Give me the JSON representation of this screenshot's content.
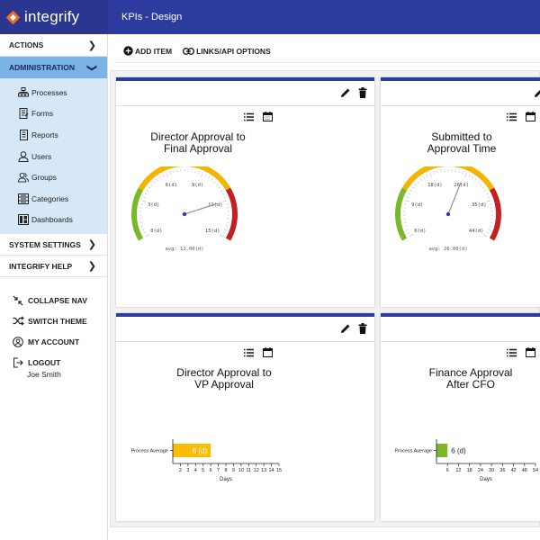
{
  "header": {
    "logo_text": "integrify",
    "page_title": "KPIs - Design"
  },
  "sidebar": {
    "actions": "ACTIONS",
    "administration": "ADMINISTRATION",
    "admin_items": [
      {
        "label": "Processes",
        "icon": "processes-icon"
      },
      {
        "label": "Forms",
        "icon": "forms-icon"
      },
      {
        "label": "Reports",
        "icon": "reports-icon"
      },
      {
        "label": "Users",
        "icon": "users-icon"
      },
      {
        "label": "Groups",
        "icon": "groups-icon"
      },
      {
        "label": "Categories",
        "icon": "categories-icon"
      },
      {
        "label": "Dashboards",
        "icon": "dashboards-icon"
      }
    ],
    "system_settings": "SYSTEM SETTINGS",
    "integrify_help": "INTEGRIFY HELP",
    "collapse_nav": "COLLAPSE NAV",
    "switch_theme": "SWITCH THEME",
    "my_account": "MY ACCOUNT",
    "logout": "LOGOUT",
    "user_name": "Joe Smith"
  },
  "toolbar": {
    "add_item": "ADD ITEM",
    "links_api": "LINKS/API OPTIONS"
  },
  "colors": {
    "brand": "#2e3b9e",
    "gauge_green": "#7ab829",
    "gauge_yellow": "#f4b400",
    "gauge_red": "#c51f1f",
    "bar_yellow": "#fbbc05",
    "bar_green": "#7ab829"
  },
  "cards": [
    {
      "title_line1": "Director Approval to",
      "title_line2": "Final Approval",
      "gauge": {
        "ticks": [
          "0(d)",
          "3(d)",
          "6(d)",
          "9(d)",
          "12(d)",
          "15(d)"
        ],
        "max": 15,
        "value": 12,
        "avg_label": "avg: 12.00(d)"
      }
    },
    {
      "title_line1": "Submitted to",
      "title_line2": "Approval Time",
      "gauge": {
        "ticks": [
          "0(d)",
          "9(d)",
          "18(d)",
          "26(d)",
          "35(d)",
          "44(d)"
        ],
        "max": 44,
        "value": 26,
        "avg_label": "avg: 26.00(d)"
      }
    },
    {
      "title_line1": "Director Approval to",
      "title_line2": "VP Approval",
      "bar": {
        "category": "Process Average",
        "value": 6,
        "value_label": "6 (d)",
        "x_ticks": [
          "2",
          "3",
          "4",
          "5",
          "6",
          "7",
          "8",
          "9",
          "10",
          "11",
          "12",
          "13",
          "14",
          "15"
        ],
        "x_min": 1,
        "x_max": 15,
        "xlabel": "Days"
      }
    },
    {
      "title_line1": "Finance Approval",
      "title_line2": "After CFO",
      "bar": {
        "category": "Process Average",
        "value": 6,
        "value_label": "6 (d)",
        "x_ticks": [
          "6",
          "12",
          "18",
          "24",
          "30",
          "36",
          "42",
          "48",
          "54"
        ],
        "x_min": 0,
        "x_max": 54,
        "xlabel": "Days"
      }
    }
  ]
}
